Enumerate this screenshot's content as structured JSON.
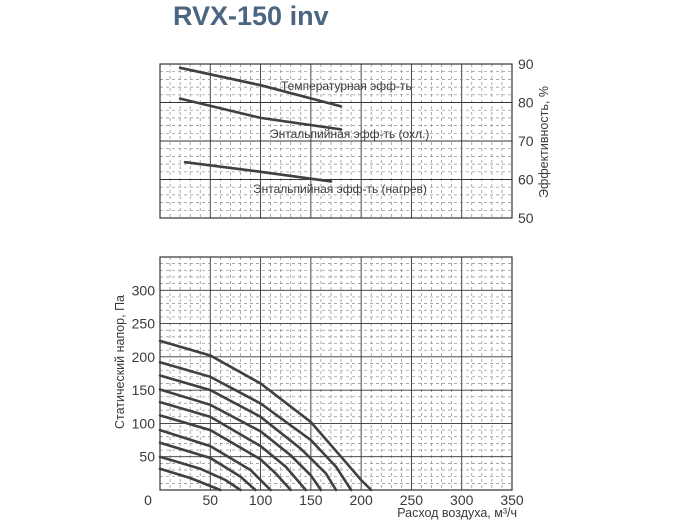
{
  "chart_data": {
    "type": "line",
    "title": "RVX-150 inv",
    "pressure_panel": {
      "xlabel": "Расход воздуха, м³/ч",
      "ylabel": "Статический напор, Па",
      "xlim": [
        0,
        350
      ],
      "ylim": [
        0,
        350
      ],
      "x_ticks": [
        "0",
        "50",
        "100",
        "150",
        "200",
        "250",
        "300",
        "350"
      ],
      "y_ticks": [
        "50",
        "100",
        "150",
        "200",
        "250",
        "300"
      ],
      "series": [
        {
          "values": [
            [
              0,
              224
            ],
            [
              50,
              202
            ],
            [
              100,
              160
            ],
            [
              150,
              102
            ],
            [
              180,
              50
            ],
            [
              200,
              15
            ],
            [
              210,
              0
            ]
          ]
        },
        {
          "values": [
            [
              0,
              192
            ],
            [
              50,
              170
            ],
            [
              100,
              130
            ],
            [
              150,
              75
            ],
            [
              175,
              35
            ],
            [
              190,
              0
            ]
          ]
        },
        {
          "values": [
            [
              0,
              172
            ],
            [
              50,
              150
            ],
            [
              100,
              110
            ],
            [
              140,
              62
            ],
            [
              165,
              25
            ],
            [
              175,
              0
            ]
          ]
        },
        {
          "values": [
            [
              0,
              151
            ],
            [
              50,
              128
            ],
            [
              100,
              88
            ],
            [
              130,
              52
            ],
            [
              150,
              22
            ],
            [
              160,
              0
            ]
          ]
        },
        {
          "values": [
            [
              0,
              132
            ],
            [
              50,
              110
            ],
            [
              100,
              66
            ],
            [
              125,
              35
            ],
            [
              145,
              0
            ]
          ]
        },
        {
          "values": [
            [
              0,
              112
            ],
            [
              50,
              90
            ],
            [
              100,
              46
            ],
            [
              115,
              25
            ],
            [
              130,
              0
            ]
          ]
        },
        {
          "values": [
            [
              0,
              90
            ],
            [
              50,
              66
            ],
            [
              90,
              30
            ],
            [
              110,
              0
            ]
          ]
        },
        {
          "values": [
            [
              0,
              71
            ],
            [
              50,
              48
            ],
            [
              80,
              20
            ],
            [
              95,
              0
            ]
          ]
        },
        {
          "values": [
            [
              0,
              50
            ],
            [
              40,
              32
            ],
            [
              65,
              15
            ],
            [
              80,
              0
            ]
          ]
        },
        {
          "values": [
            [
              0,
              32
            ],
            [
              30,
              18
            ],
            [
              50,
              6
            ],
            [
              60,
              0
            ]
          ]
        }
      ]
    },
    "efficiency_panel": {
      "ylabel": "Эффективность, %",
      "ylim": [
        50,
        90
      ],
      "y_ticks": [
        "50",
        "60",
        "70",
        "80",
        "90"
      ],
      "series": [
        {
          "name": "Температурная эфф-ть",
          "values": [
            [
              20,
              89
            ],
            [
              100,
              84.5
            ],
            [
              180,
              79
            ]
          ]
        },
        {
          "name": "Энтальпийная эфф-ть (охл.)",
          "values": [
            [
              20,
              81
            ],
            [
              100,
              76
            ],
            [
              180,
              73
            ]
          ]
        },
        {
          "name": "Энтальпийная эфф-ть (нагрев)",
          "values": [
            [
              25,
              64.5
            ],
            [
              100,
              62
            ],
            [
              170,
              59.5
            ]
          ]
        }
      ]
    }
  }
}
